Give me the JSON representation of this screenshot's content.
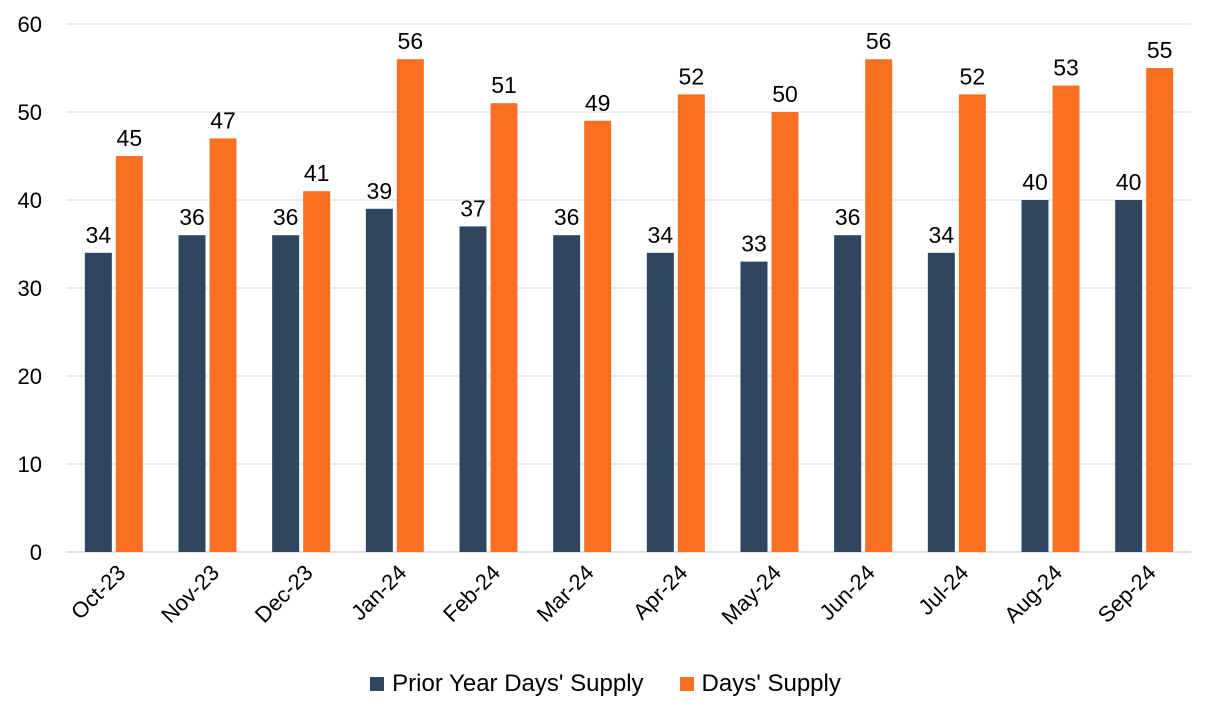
{
  "chart_data": {
    "type": "bar",
    "categories": [
      "Oct-23",
      "Nov-23",
      "Dec-23",
      "Jan-24",
      "Feb-24",
      "Mar-24",
      "Apr-24",
      "May-24",
      "Jun-24",
      "Jul-24",
      "Aug-24",
      "Sep-24"
    ],
    "series": [
      {
        "name": "Prior Year Days' Supply",
        "color": "#2e4660",
        "values": [
          34,
          36,
          36,
          39,
          37,
          36,
          34,
          33,
          36,
          34,
          40,
          40
        ]
      },
      {
        "name": "Days' Supply",
        "color": "#f97022",
        "values": [
          45,
          47,
          41,
          56,
          51,
          49,
          52,
          50,
          56,
          52,
          53,
          55
        ]
      }
    ],
    "ylim": [
      0,
      60
    ],
    "yticks": [
      0,
      10,
      20,
      30,
      40,
      50,
      60
    ],
    "grid": true,
    "data_labels": true,
    "legend_position": "bottom"
  }
}
